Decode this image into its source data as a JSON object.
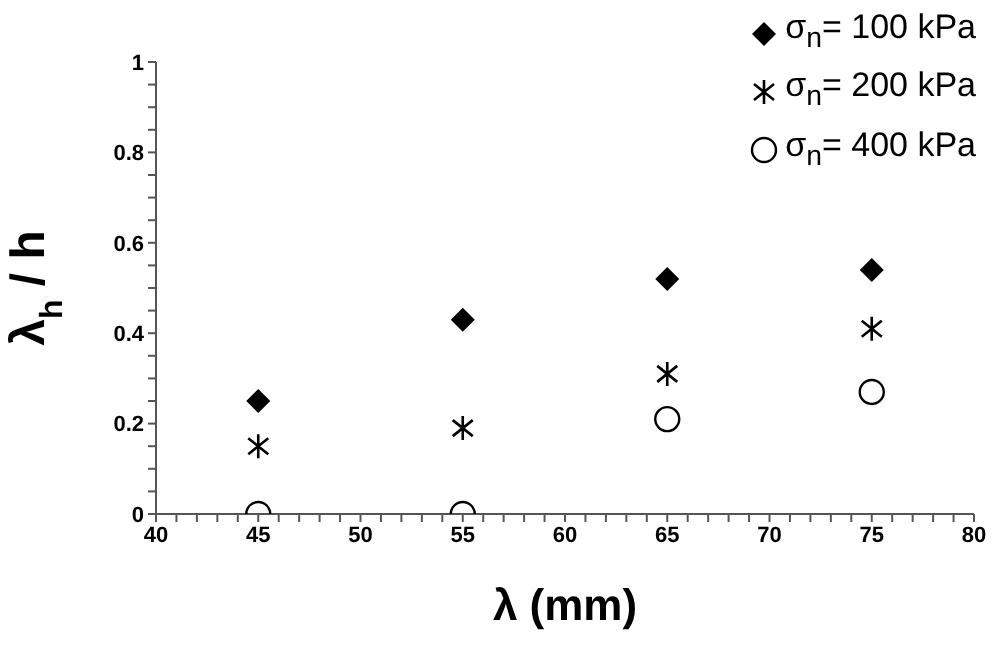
{
  "chart_data": {
    "type": "scatter",
    "xlabel": "λ (mm)",
    "ylabel": "λ$_{h}$ / h",
    "x": [
      45,
      55,
      65,
      75
    ],
    "xlim": [
      40,
      80
    ],
    "ylim": [
      0,
      1
    ],
    "xticks": [
      40,
      {
        "value": 41,
        "label": null
      },
      {
        "value": 42,
        "label": null
      },
      {
        "value": 43,
        "label": null
      },
      {
        "value": 44,
        "label": null
      },
      45,
      {
        "value": 46,
        "label": null
      },
      {
        "value": 47,
        "label": null
      },
      {
        "value": 48,
        "label": null
      },
      {
        "value": 49,
        "label": null
      },
      50,
      {
        "value": 51,
        "label": null
      },
      {
        "value": 52,
        "label": null
      },
      {
        "value": 53,
        "label": null
      },
      {
        "value": 54,
        "label": null
      },
      55,
      {
        "value": 56,
        "label": null
      },
      {
        "value": 57,
        "label": null
      },
      {
        "value": 58,
        "label": null
      },
      {
        "value": 59,
        "label": null
      },
      60,
      {
        "value": 61,
        "label": null
      },
      {
        "value": 62,
        "label": null
      },
      {
        "value": 63,
        "label": null
      },
      {
        "value": 64,
        "label": null
      },
      65,
      {
        "value": 66,
        "label": null
      },
      {
        "value": 67,
        "label": null
      },
      {
        "value": 68,
        "label": null
      },
      {
        "value": 69,
        "label": null
      },
      70,
      {
        "value": 71,
        "label": null
      },
      {
        "value": 72,
        "label": null
      },
      {
        "value": 73,
        "label": null
      },
      {
        "value": 74,
        "label": null
      },
      75,
      {
        "value": 76,
        "label": null
      },
      {
        "value": 77,
        "label": null
      },
      {
        "value": 78,
        "label": null
      },
      {
        "value": 79,
        "label": null
      },
      80
    ],
    "yticks": [
      0,
      {
        "value": 0.05,
        "label": null
      },
      {
        "value": 0.1,
        "label": null
      },
      {
        "value": 0.15,
        "label": null
      },
      0.2,
      {
        "value": 0.25,
        "label": null
      },
      {
        "value": 0.3,
        "label": null
      },
      {
        "value": 0.35,
        "label": null
      },
      0.4,
      {
        "value": 0.45,
        "label": null
      },
      {
        "value": 0.5,
        "label": null
      },
      {
        "value": 0.55,
        "label": null
      },
      0.6,
      {
        "value": 0.65,
        "label": null
      },
      {
        "value": 0.7,
        "label": null
      },
      {
        "value": 0.75,
        "label": null
      },
      0.8,
      {
        "value": 0.85,
        "label": null
      },
      {
        "value": 0.9,
        "label": null
      },
      {
        "value": 0.95,
        "label": null
      },
      1
    ],
    "grid": false,
    "legend": "top right",
    "series": [
      {
        "name": "σ$_{n}$= 100 kPa",
        "color": "#000000",
        "marker": "diamond",
        "values": [
          0.25,
          0.43,
          0.52,
          0.54
        ]
      },
      {
        "name": "σ$_{n}$= 200 kPa",
        "color": "#000000",
        "marker": "cross",
        "values": [
          0.15,
          0.19,
          0.31,
          0.41
        ]
      },
      {
        "name": "σ$_{n}$= 400 kPa",
        "color": "#000000",
        "marker": "circle",
        "values": [
          0,
          0,
          0.21,
          0.27
        ]
      }
    ]
  }
}
